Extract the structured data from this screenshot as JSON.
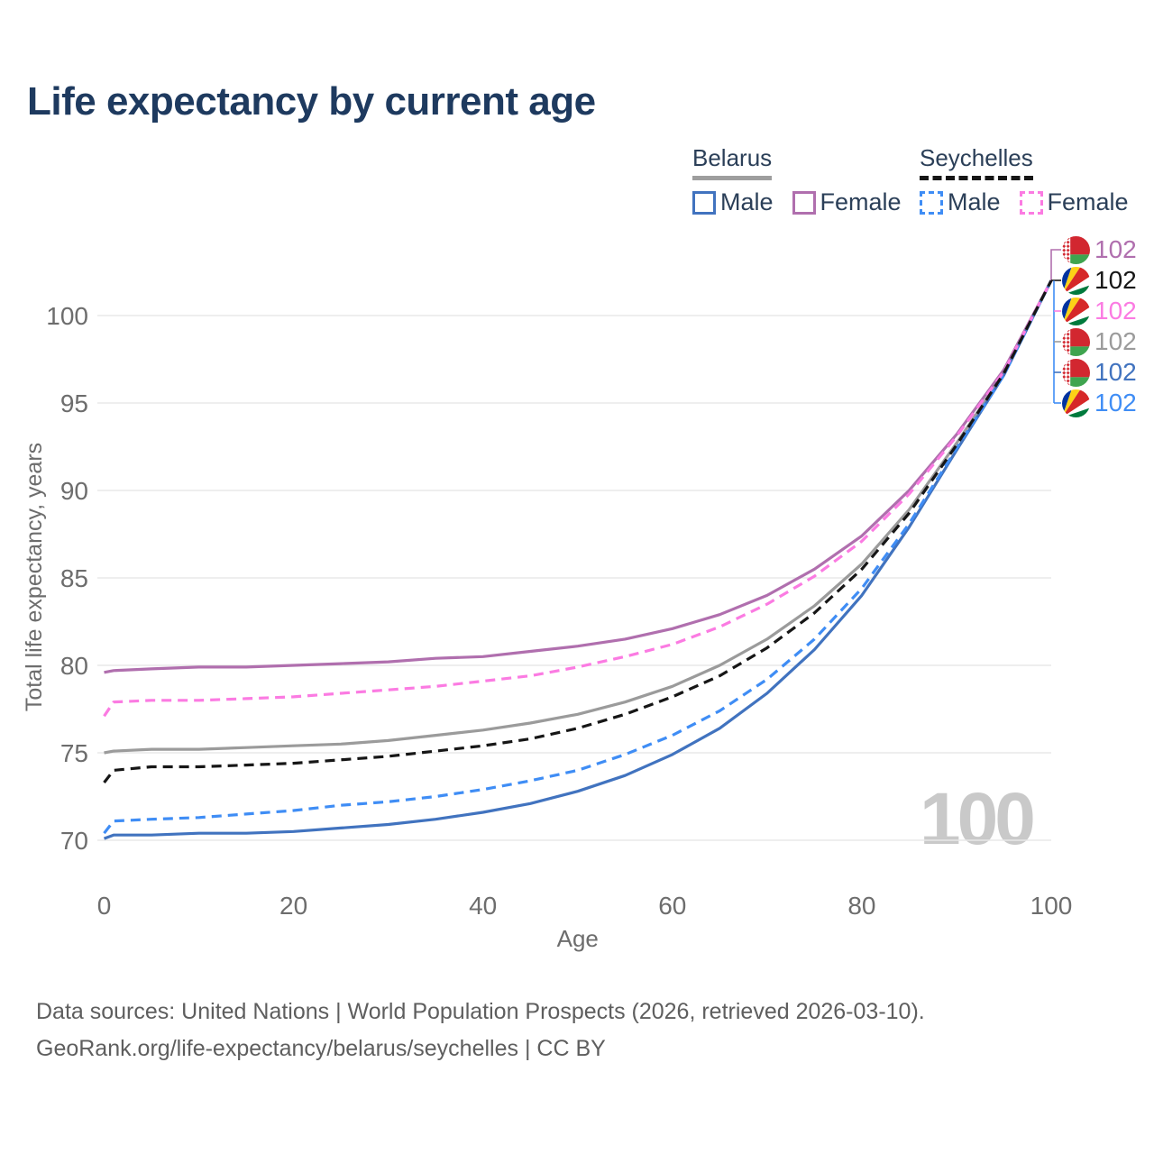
{
  "title": "Life expectancy by current age",
  "colors": {
    "background": "#ffffff",
    "title_text": "#1e3a5f",
    "legend_text": "#2b3f58",
    "axis_text": "#6d6d6d",
    "gridline": "#e8e8e8",
    "footer_text": "#5e5e5e",
    "age_counter_text": "#c9c9c9",
    "belarus_underline": "#9e9e9e",
    "seychelles_underline": "#161616",
    "belarus_male": "#4173bf",
    "belarus_female": "#b06fae",
    "belarus_total": "#9b9b9b",
    "seychelles_male": "#3f8df5",
    "seychelles_female": "#fb7be2",
    "seychelles_total": "#161616"
  },
  "legend": {
    "groups": [
      {
        "country": "Belarus",
        "line_style": "solid",
        "underline_color": "#9e9e9e",
        "items": [
          {
            "label": "Male",
            "color": "#4173bf",
            "dashed": false
          },
          {
            "label": "Female",
            "color": "#b06fae",
            "dashed": false
          }
        ]
      },
      {
        "country": "Seychelles",
        "line_style": "dashed",
        "underline_color": "#161616",
        "items": [
          {
            "label": "Male",
            "color": "#3f8df5",
            "dashed": true
          },
          {
            "label": "Female",
            "color": "#fb7be2",
            "dashed": true
          }
        ]
      }
    ]
  },
  "chart_data": {
    "type": "line",
    "title": "Life expectancy by current age",
    "xlabel": "Age",
    "ylabel": "Total life expectancy, years",
    "xlim": [
      0,
      100
    ],
    "ylim": [
      68.5,
      103.5
    ],
    "xticks": [
      0,
      20,
      40,
      60,
      80,
      100
    ],
    "yticks": [
      70,
      75,
      80,
      85,
      90,
      95,
      100
    ],
    "grid": "horizontal-only",
    "legend_position": "top-right",
    "x": [
      0,
      1,
      5,
      10,
      15,
      20,
      25,
      30,
      35,
      40,
      45,
      50,
      55,
      60,
      65,
      70,
      75,
      80,
      85,
      90,
      95,
      100
    ],
    "series": [
      {
        "name": "Belarus Total",
        "country": "Belarus",
        "sex": "Both",
        "color": "#9b9b9b",
        "line_style": "solid",
        "end_label": "102",
        "values": [
          75.0,
          75.1,
          75.2,
          75.2,
          75.3,
          75.4,
          75.5,
          75.7,
          76.0,
          76.3,
          76.7,
          77.2,
          77.9,
          78.8,
          80.0,
          81.5,
          83.4,
          85.8,
          88.9,
          92.7,
          96.7,
          102.0
        ]
      },
      {
        "name": "Belarus Female",
        "country": "Belarus",
        "sex": "Female",
        "color": "#b06fae",
        "line_style": "solid",
        "end_label": "102",
        "values": [
          79.6,
          79.7,
          79.8,
          79.9,
          79.9,
          80.0,
          80.1,
          80.2,
          80.4,
          80.5,
          80.8,
          81.1,
          81.5,
          82.1,
          82.9,
          84.0,
          85.5,
          87.4,
          90.0,
          93.2,
          96.9,
          102.0
        ]
      },
      {
        "name": "Belarus Male",
        "country": "Belarus",
        "sex": "Male",
        "color": "#4173bf",
        "line_style": "solid",
        "end_label": "102",
        "values": [
          70.1,
          70.3,
          70.3,
          70.4,
          70.4,
          70.5,
          70.7,
          70.9,
          71.2,
          71.6,
          72.1,
          72.8,
          73.7,
          74.9,
          76.4,
          78.4,
          80.9,
          84.0,
          87.9,
          92.3,
          96.6,
          102.0
        ]
      },
      {
        "name": "Seychelles Male",
        "country": "Seychelles",
        "sex": "Male",
        "color": "#3f8df5",
        "line_style": "dashed",
        "end_label": "102",
        "values": [
          70.4,
          71.1,
          71.2,
          71.3,
          71.5,
          71.7,
          72.0,
          72.2,
          72.5,
          72.9,
          73.4,
          74.0,
          74.9,
          76.0,
          77.4,
          79.2,
          81.5,
          84.4,
          88.1,
          92.4,
          96.6,
          102.0
        ]
      },
      {
        "name": "Seychelles Female",
        "country": "Seychelles",
        "sex": "Female",
        "color": "#fb7be2",
        "line_style": "dashed",
        "end_label": "102",
        "values": [
          77.1,
          77.9,
          78.0,
          78.0,
          78.1,
          78.2,
          78.4,
          78.6,
          78.8,
          79.1,
          79.4,
          79.9,
          80.5,
          81.2,
          82.2,
          83.5,
          85.1,
          87.1,
          89.8,
          93.1,
          96.8,
          102.0
        ]
      },
      {
        "name": "Seychelles Total",
        "country": "Seychelles",
        "sex": "Both",
        "color": "#161616",
        "line_style": "dashed",
        "end_label": "102",
        "values": [
          73.3,
          74.0,
          74.2,
          74.2,
          74.3,
          74.4,
          74.6,
          74.8,
          75.1,
          75.4,
          75.8,
          76.4,
          77.2,
          78.2,
          79.4,
          81.0,
          83.0,
          85.5,
          88.7,
          92.6,
          96.7,
          102.0
        ]
      }
    ],
    "end_labels": [
      {
        "flag": "belarus",
        "value": "102",
        "color": "#b06fae"
      },
      {
        "flag": "seychelles",
        "value": "102",
        "color": "#161616"
      },
      {
        "flag": "seychelles",
        "value": "102",
        "color": "#fb7be2"
      },
      {
        "flag": "belarus",
        "value": "102",
        "color": "#9b9b9b"
      },
      {
        "flag": "belarus",
        "value": "102",
        "color": "#4173bf"
      },
      {
        "flag": "seychelles",
        "value": "102",
        "color": "#3f8df5"
      }
    ]
  },
  "annotations": {
    "age_counter": "100"
  },
  "footer": {
    "line1": "Data sources: United Nations | World Population Prospects (2026, retrieved 2026-03-10).",
    "line2": "GeoRank.org/life-expectancy/belarus/seychelles | CC BY"
  }
}
